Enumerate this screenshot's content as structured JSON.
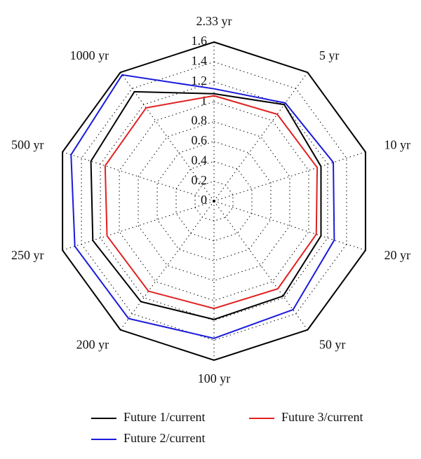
{
  "chart_data": {
    "type": "radar",
    "categories": [
      "2.33 yr",
      "5 yr",
      "10 yr",
      "20 yr",
      "50 yr",
      "100 yr",
      "200 yr",
      "250 yr",
      "500 yr",
      "1000 yr"
    ],
    "ylim": [
      0,
      1.6
    ],
    "yticks": [
      0,
      0.2,
      0.4,
      0.6,
      0.8,
      1,
      1.2,
      1.4,
      1.6
    ],
    "series": [
      {
        "name": "Future 1/current",
        "color": "#000000",
        "values": [
          1.08,
          1.2,
          1.13,
          1.13,
          1.18,
          1.19,
          1.25,
          1.28,
          1.3,
          1.36
        ]
      },
      {
        "name": "Future 2/current",
        "color": "#1a1adc",
        "values": [
          1.13,
          1.22,
          1.26,
          1.27,
          1.35,
          1.38,
          1.46,
          1.47,
          1.51,
          1.57
        ]
      },
      {
        "name": "Future 3/current",
        "color": "#e02020",
        "values": [
          1.06,
          1.08,
          1.09,
          1.08,
          1.09,
          1.08,
          1.12,
          1.13,
          1.15,
          1.16
        ]
      }
    ]
  }
}
